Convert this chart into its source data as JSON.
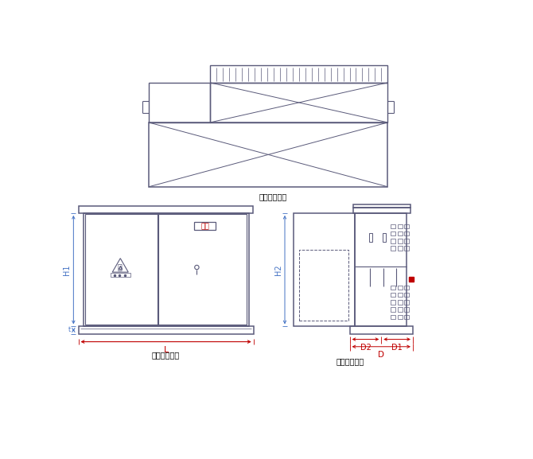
{
  "bg_color": "#ffffff",
  "line_color": "#5a5a7a",
  "dim_color_blue": "#4472c4",
  "dim_color_red": "#c00000",
  "label_top": "标准型俯视图",
  "label_front": "标准型正视图",
  "label_side": "标准型侧视图",
  "dim_H1": "H1",
  "dim_H2": "H2",
  "dim_L": "L",
  "dim_D": "D",
  "dim_D1": "D1",
  "dim_D2": "D2",
  "nameplate_text": "铭牌"
}
